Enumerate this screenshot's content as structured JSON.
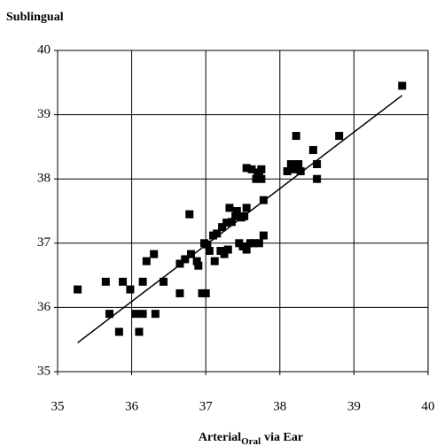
{
  "chart_data": {
    "type": "scatter",
    "title": "Sublingual",
    "xlabel": {
      "main": "Arterial",
      "sub": "Oral",
      "tail": "via Ear"
    },
    "xlim": [
      35,
      40
    ],
    "xticks": [
      35,
      36,
      37,
      38,
      39,
      40
    ],
    "ylim": [
      35,
      40
    ],
    "yticks": [
      35,
      36,
      37,
      38,
      39,
      40
    ],
    "grid": true,
    "color": "#000000",
    "x": [
      35.27,
      35.65,
      35.7,
      35.83,
      35.88,
      35.98,
      36.05,
      36.1,
      36.15,
      36.15,
      36.2,
      36.3,
      36.32,
      36.43,
      36.65,
      36.65,
      36.72,
      36.78,
      36.8,
      36.88,
      36.9,
      36.95,
      36.98,
      37.0,
      37.02,
      37.05,
      37.1,
      37.12,
      37.15,
      37.2,
      37.22,
      37.25,
      37.28,
      37.3,
      37.32,
      37.35,
      37.4,
      37.42,
      37.45,
      37.48,
      37.5,
      37.52,
      37.55,
      37.55,
      37.55,
      37.6,
      37.62,
      37.65,
      37.68,
      37.7,
      37.72,
      37.72,
      37.75,
      37.75,
      37.78,
      37.78,
      38.1,
      38.15,
      38.2,
      38.22,
      38.25,
      38.28,
      38.45,
      38.5,
      38.5,
      38.8,
      39.65
    ],
    "y": [
      36.28,
      36.4,
      35.9,
      35.62,
      36.4,
      36.28,
      35.9,
      35.62,
      35.9,
      36.4,
      36.72,
      36.83,
      35.9,
      36.4,
      36.22,
      36.68,
      36.75,
      37.45,
      36.83,
      36.72,
      36.65,
      36.22,
      37.0,
      36.22,
      36.98,
      36.88,
      37.12,
      36.72,
      37.15,
      36.88,
      37.25,
      36.83,
      37.32,
      36.9,
      37.55,
      37.33,
      37.42,
      37.5,
      37.0,
      37.4,
      36.95,
      37.42,
      37.55,
      36.9,
      38.17,
      37.0,
      38.15,
      37.0,
      38.0,
      38.1,
      37.0,
      38.05,
      38.15,
      38.0,
      37.12,
      37.67,
      38.12,
      38.23,
      38.15,
      38.67,
      38.23,
      38.12,
      38.45,
      38.0,
      38.23,
      38.67,
      39.45
    ],
    "trendline": {
      "x": [
        35.27,
        39.65
      ],
      "y": [
        35.45,
        39.3
      ]
    }
  }
}
